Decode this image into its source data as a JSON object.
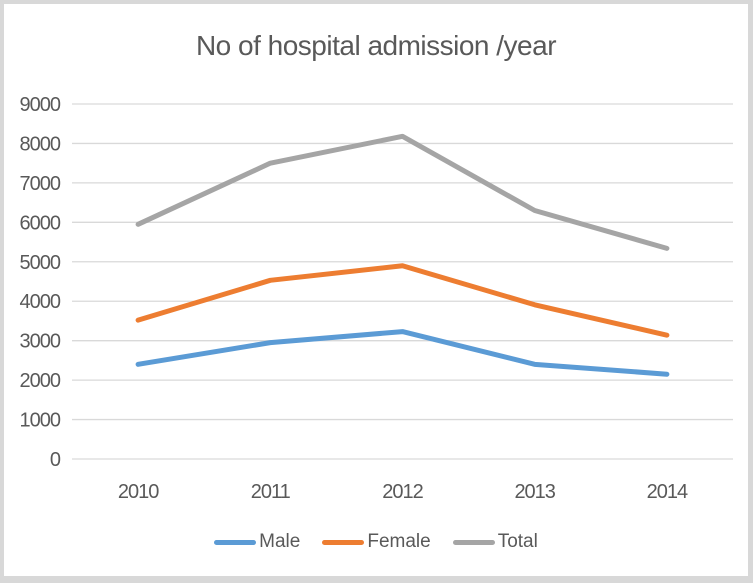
{
  "chart_data": {
    "type": "line",
    "title": "No of hospital admission /year",
    "categories": [
      "2010",
      "2011",
      "2012",
      "2013",
      "2014"
    ],
    "series": [
      {
        "name": "Male",
        "color": "#5B9BD5",
        "values": [
          2400,
          2950,
          3230,
          2400,
          2150
        ]
      },
      {
        "name": "Female",
        "color": "#ED7D31",
        "values": [
          3520,
          4530,
          4900,
          3910,
          3140
        ]
      },
      {
        "name": "Total",
        "color": "#A5A5A5",
        "values": [
          5950,
          7500,
          8180,
          6300,
          5340
        ]
      }
    ],
    "xlabel": "",
    "ylabel": "",
    "ylim": [
      0,
      9000
    ],
    "y_tick_step": 1000,
    "y_ticks": [
      "0",
      "1000",
      "2000",
      "3000",
      "4000",
      "5000",
      "6000",
      "7000",
      "8000",
      "9000"
    ],
    "grid": "horizontal",
    "gridline_color": "#D9D9D9",
    "text_color": "#595959",
    "legend_position": "bottom",
    "line_width": 5
  }
}
